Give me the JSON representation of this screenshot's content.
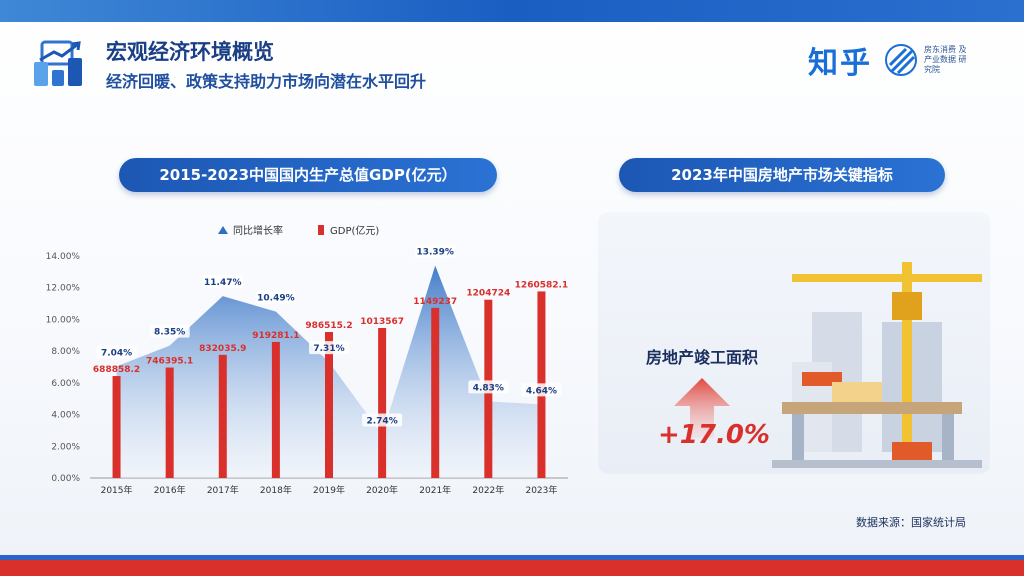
{
  "header": {
    "title": "宏观经济环境概览",
    "subtitle": "经济回暖、政策支持助力市场向潜在水平回升",
    "brand_name": "知乎",
    "brand_sub": "房东消费 及产业数据 研究院"
  },
  "left_section": {
    "title": "2015-2023中国国内生产总值GDP(亿元）"
  },
  "right_section": {
    "title": "2023年中国房地产市场关键指标",
    "kpi_label": "房地产竣工面积",
    "kpi_value": "+17.0%"
  },
  "source": "数据来源：国家统计局",
  "colors": {
    "bar": "#d9302c",
    "area_top": "#2f6fc4",
    "area_bottom": "#eef3fa",
    "brand_blue": "#1d57b4",
    "red": "#d9302c"
  },
  "chart_data": {
    "type": "bar",
    "categories": [
      "2015年",
      "2016年",
      "2017年",
      "2018年",
      "2019年",
      "2020年",
      "2021年",
      "2022年",
      "2023年"
    ],
    "series": [
      {
        "name": "GDP(亿元)",
        "type": "bar",
        "axis": "hidden",
        "values": [
          688858.2,
          746395.1,
          832035.9,
          919281.1,
          986515.2,
          1013567,
          1149237,
          1204724,
          1260582.1
        ],
        "labels": [
          "688858.2",
          "746395.1",
          "832035.9",
          "919281.1",
          "986515.2",
          "1013567",
          "1149237",
          "1204724",
          "1260582.1"
        ]
      },
      {
        "name": "同比增长率",
        "type": "area",
        "axis": "left",
        "values": [
          7.04,
          8.35,
          11.47,
          10.49,
          7.31,
          2.74,
          13.39,
          4.83,
          4.64
        ],
        "labels": [
          "7.04%",
          "8.35%",
          "11.47%",
          "10.49%",
          "7.31%",
          "2.74%",
          "13.39%",
          "4.83%",
          "4.64%"
        ]
      }
    ],
    "y_ticks": [
      "0.00%",
      "2.00%",
      "4.00%",
      "6.00%",
      "8.00%",
      "10.00%",
      "12.00%",
      "14.00%"
    ],
    "ylim": [
      0,
      14
    ],
    "bar_ylim": [
      0,
      1500000
    ],
    "legend_position": "top",
    "grid": false
  }
}
